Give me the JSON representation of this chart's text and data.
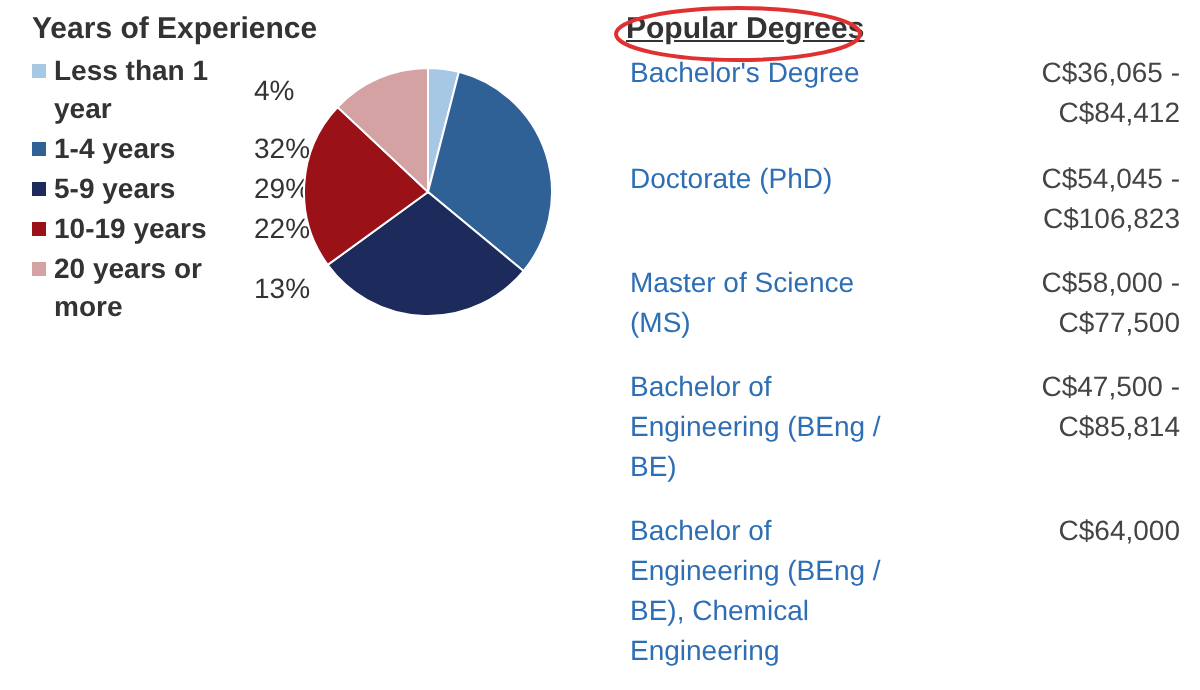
{
  "chart_data": [
    {
      "type": "pie",
      "title": "Years of Experience",
      "categories": [
        "Less than 1 year",
        "1-4 years",
        "5-9 years",
        "10-19 years",
        "20 years or more"
      ],
      "values": [
        4,
        32,
        29,
        22,
        13
      ],
      "value_labels": [
        "4%",
        "32%",
        "29%",
        "22%",
        "13%"
      ],
      "colors": [
        "#a6c8e4",
        "#2f6196",
        "#1d2b5c",
        "#9a1218",
        "#d4a2a2"
      ],
      "legend": "left"
    },
    {
      "type": "other",
      "title": "Popular Degrees",
      "categories": [
        "Bachelor's Degree",
        "Doctorate (PhD)",
        "Master of Science (MS)",
        "Bachelor of Engineering (BEng / BE)",
        "Bachelor of Engineering (BEng / BE), Chemical Engineering"
      ],
      "value_labels": [
        "C$36,065 - C$84,412",
        "C$54,045 - C$106,823",
        "C$58,000 - C$77,500",
        "C$47,500 - C$85,814",
        "C$64,000"
      ]
    }
  ]
}
